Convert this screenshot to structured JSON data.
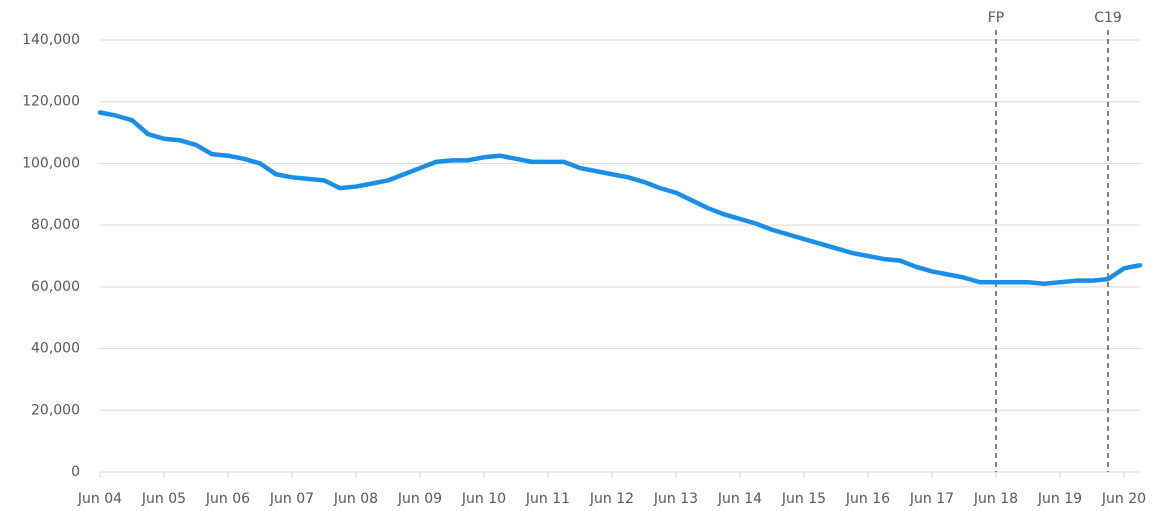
{
  "chart_data": {
    "type": "line",
    "categories": [
      "Jun 04",
      null,
      null,
      null,
      "Jun 05",
      null,
      null,
      null,
      "Jun 06",
      null,
      null,
      null,
      "Jun 07",
      null,
      null,
      null,
      "Jun 08",
      null,
      null,
      null,
      "Jun 09",
      null,
      null,
      null,
      "Jun 10",
      null,
      null,
      null,
      "Jun 11",
      null,
      null,
      null,
      "Jun 12",
      null,
      null,
      null,
      "Jun 13",
      null,
      null,
      null,
      "Jun 14",
      null,
      null,
      null,
      "Jun 15",
      null,
      null,
      null,
      "Jun 16",
      null,
      null,
      null,
      "Jun 17",
      null,
      null,
      null,
      "Jun 18",
      null,
      null,
      null,
      "Jun 19",
      null,
      null,
      null,
      "Jun 20",
      null
    ],
    "series": [
      {
        "color": "#1a8fea",
        "values": [
          116500,
          115500,
          114000,
          109500,
          108000,
          107500,
          106000,
          103000,
          102500,
          101500,
          100000,
          96500,
          95500,
          95000,
          94500,
          92000,
          92500,
          93500,
          94500,
          96500,
          98500,
          100500,
          101000,
          101000,
          102000,
          102500,
          101500,
          100500,
          100500,
          100500,
          98500,
          97500,
          96500,
          95500,
          94000,
          92000,
          90500,
          88000,
          85500,
          83500,
          82000,
          80500,
          78500,
          77000,
          75500,
          74000,
          72500,
          71000,
          70000,
          69000,
          68500,
          66500,
          65000,
          64000,
          63000,
          61500,
          61500,
          61500,
          61500,
          61000,
          61500,
          62000,
          62000,
          62500,
          66000,
          67000
        ]
      }
    ],
    "ylim": [
      0,
      140000
    ],
    "yticks": [
      0,
      {
        "value": 20000,
        "label": "20,000"
      },
      {
        "value": 40000,
        "label": "40,000"
      },
      {
        "value": 60000,
        "label": "60,000"
      },
      {
        "value": 80000,
        "label": "80,000"
      },
      {
        "value": 100000,
        "label": "100,000"
      },
      {
        "value": 120000,
        "label": "120,000"
      },
      {
        "value": 140000,
        "label": "140,000"
      }
    ],
    "grid": true,
    "annotations": [
      {
        "label": "FP",
        "category_index": 56
      },
      {
        "label": "C19",
        "category_index": 63
      }
    ]
  }
}
